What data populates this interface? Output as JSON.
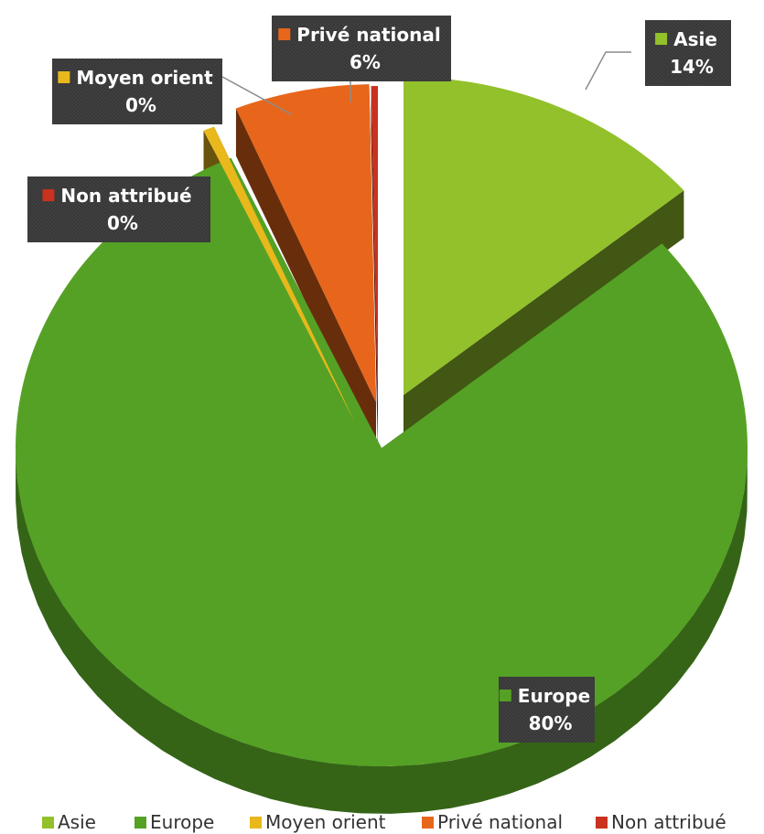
{
  "chart_data": {
    "type": "pie",
    "style": "3d-exploded",
    "title": "",
    "categories": [
      "Asie",
      "Europe",
      "Moyen orient",
      "Privé national",
      "Non attribué"
    ],
    "values": [
      14,
      80,
      0.5,
      6,
      0.3
    ],
    "data_labels": [
      {
        "name": "Asie",
        "pct": "14%"
      },
      {
        "name": "Europe",
        "pct": "80%"
      },
      {
        "name": "Moyen orient",
        "pct": "0%"
      },
      {
        "name": "Privé national",
        "pct": "6%"
      },
      {
        "name": "Non attribué",
        "pct": "0%"
      }
    ],
    "colors": [
      "#92c12b",
      "#55a125",
      "#e8b81c",
      "#e8661b",
      "#c8321e"
    ],
    "legend_position": "bottom"
  }
}
